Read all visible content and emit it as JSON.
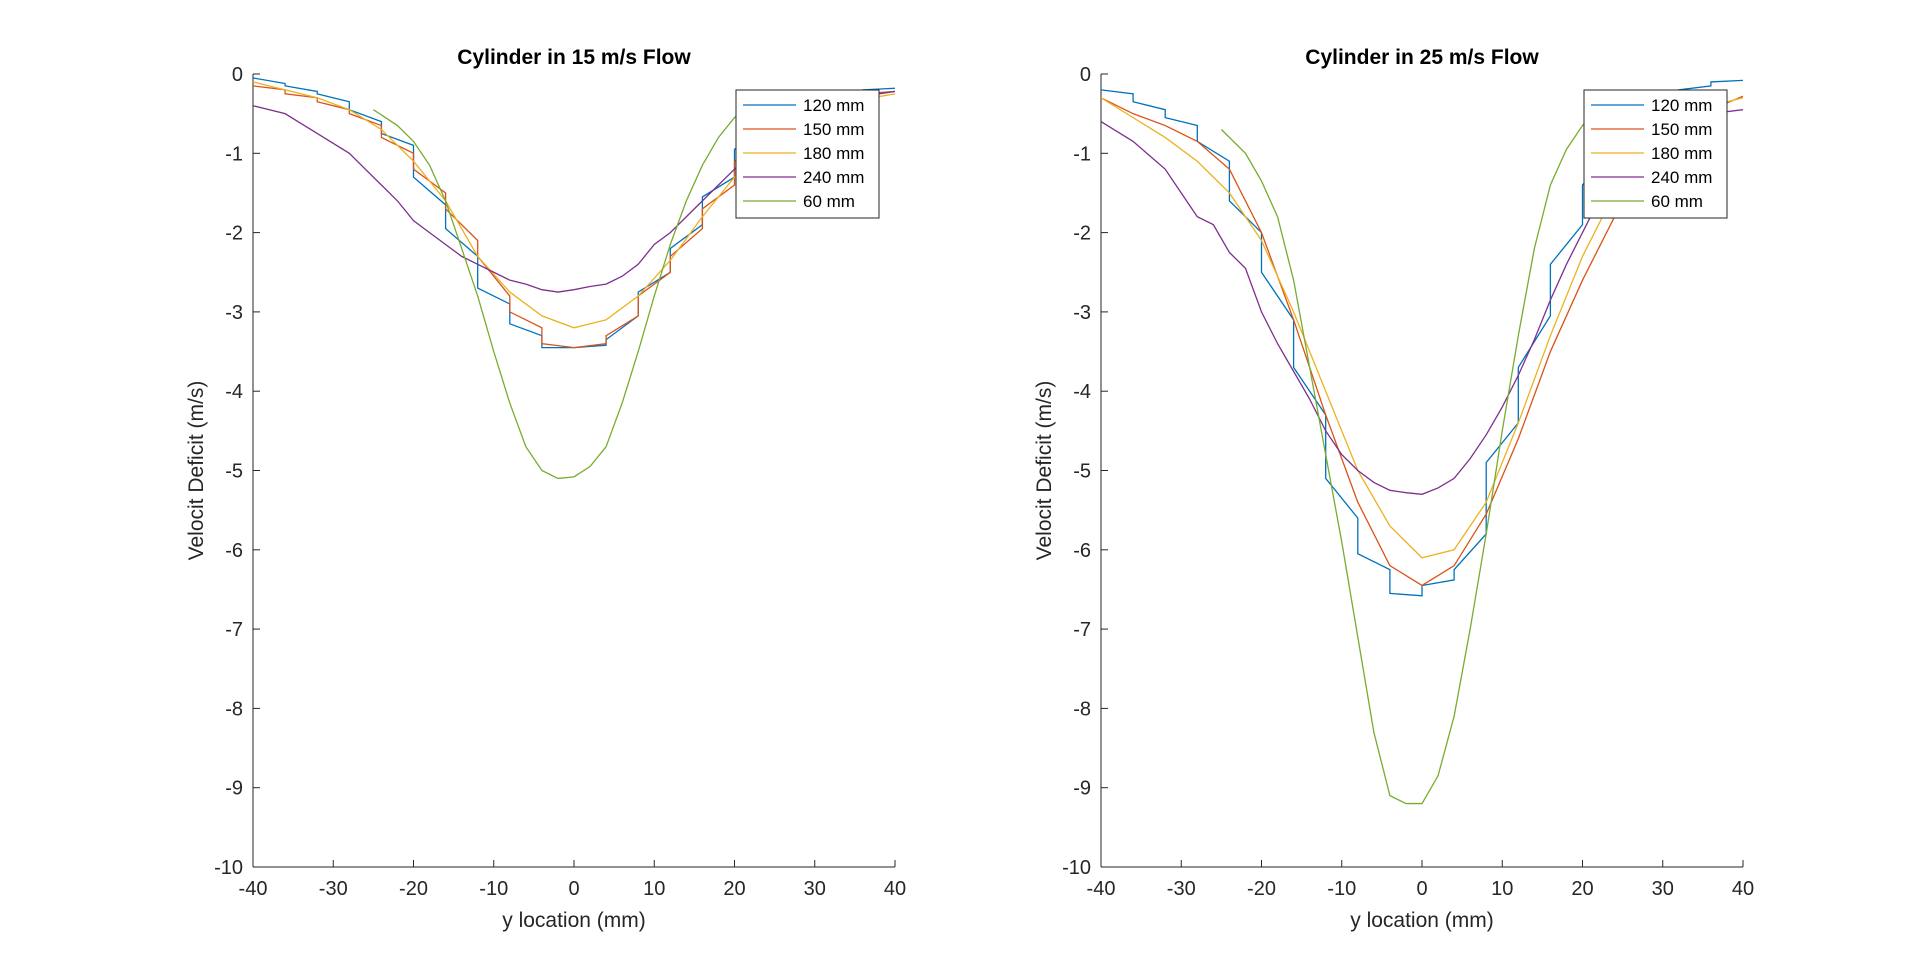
{
  "chart_data": [
    {
      "type": "line",
      "title": "Cylinder in 15 m/s Flow",
      "xlabel": "y location (mm)",
      "ylabel": "Velocit Deficit (m/s)",
      "xlim": [
        -40,
        40
      ],
      "ylim": [
        -10,
        0
      ],
      "xticks": [
        "-40",
        "-30",
        "-20",
        "-10",
        "0",
        "10",
        "20",
        "30",
        "40"
      ],
      "yticks": [
        "0",
        "-1",
        "-2",
        "-3",
        "-4",
        "-5",
        "-6",
        "-7",
        "-8",
        "-9",
        "-10"
      ],
      "grid": false,
      "legend_position": "top-right",
      "series": [
        {
          "name": "120 mm",
          "color": "#0072BD",
          "x": [
            -40,
            -36,
            -36,
            -32,
            -32,
            -28,
            -28,
            -24,
            -24,
            -20,
            -20,
            -16,
            -16,
            -12,
            -12,
            -8,
            -8,
            -4,
            -4,
            0,
            0,
            4,
            4,
            8,
            8,
            12,
            12,
            16,
            16,
            20,
            20,
            24,
            24,
            28,
            28,
            32,
            32,
            36,
            36,
            40
          ],
          "y": [
            -0.05,
            -0.12,
            -0.15,
            -0.22,
            -0.25,
            -0.35,
            -0.45,
            -0.6,
            -0.75,
            -0.9,
            -1.3,
            -1.65,
            -1.95,
            -2.3,
            -2.7,
            -2.9,
            -3.15,
            -3.3,
            -3.45,
            -3.45,
            -3.45,
            -3.42,
            -3.35,
            -3.05,
            -2.75,
            -2.5,
            -2.2,
            -1.9,
            -1.55,
            -1.3,
            -0.95,
            -0.7,
            -0.55,
            -0.45,
            -0.38,
            -0.32,
            -0.28,
            -0.24,
            -0.2,
            -0.18
          ]
        },
        {
          "name": "150 mm",
          "color": "#D95319",
          "x": [
            -40,
            -36,
            -36,
            -32,
            -32,
            -28,
            -28,
            -24,
            -24,
            -20,
            -20,
            -16,
            -16,
            -12,
            -12,
            -8,
            -8,
            -4,
            -4,
            0,
            0,
            4,
            4,
            8,
            8,
            12,
            12,
            16,
            16,
            20,
            20,
            24,
            24,
            28,
            28,
            32,
            32,
            36,
            36,
            40
          ],
          "y": [
            -0.15,
            -0.2,
            -0.25,
            -0.3,
            -0.35,
            -0.45,
            -0.5,
            -0.65,
            -0.8,
            -1.0,
            -1.2,
            -1.5,
            -1.7,
            -2.1,
            -2.3,
            -2.8,
            -3.0,
            -3.2,
            -3.4,
            -3.45,
            -3.45,
            -3.4,
            -3.3,
            -3.05,
            -2.8,
            -2.5,
            -2.3,
            -1.95,
            -1.7,
            -1.4,
            -1.1,
            -0.85,
            -0.7,
            -0.55,
            -0.45,
            -0.38,
            -0.32,
            -0.28,
            -0.25,
            -0.22
          ]
        },
        {
          "name": "180 mm",
          "color": "#EDB120",
          "x": [
            -40,
            -36,
            -32,
            -28,
            -24,
            -20,
            -16,
            -12,
            -8,
            -4,
            0,
            4,
            8,
            12,
            16,
            20,
            24,
            28,
            32,
            36,
            40
          ],
          "y": [
            -0.1,
            -0.2,
            -0.3,
            -0.45,
            -0.7,
            -1.1,
            -1.6,
            -2.3,
            -2.75,
            -3.05,
            -3.2,
            -3.1,
            -2.8,
            -2.35,
            -1.8,
            -1.3,
            -0.9,
            -0.6,
            -0.42,
            -0.32,
            -0.25
          ]
        },
        {
          "name": "240 mm",
          "color": "#7E2F8E",
          "x": [
            -40,
            -36,
            -32,
            -28,
            -26,
            -24,
            -22,
            -20,
            -18,
            -16,
            -14,
            -12,
            -10,
            -8,
            -6,
            -4,
            -2,
            0,
            2,
            4,
            6,
            8,
            10,
            12,
            14,
            16,
            18,
            20,
            22,
            24,
            26,
            28,
            32,
            36,
            40
          ],
          "y": [
            -0.4,
            -0.5,
            -0.75,
            -1.0,
            -1.2,
            -1.4,
            -1.6,
            -1.85,
            -2.0,
            -2.15,
            -2.3,
            -2.4,
            -2.5,
            -2.6,
            -2.65,
            -2.72,
            -2.75,
            -2.72,
            -2.68,
            -2.65,
            -2.55,
            -2.4,
            -2.15,
            -2.0,
            -1.8,
            -1.6,
            -1.4,
            -1.2,
            -1.0,
            -0.85,
            -0.7,
            -0.55,
            -0.38,
            -0.28,
            -0.22
          ]
        },
        {
          "name": "60 mm",
          "color": "#77AC30",
          "x": [
            -25,
            -22,
            -20,
            -18,
            -16,
            -14,
            -12,
            -10,
            -8,
            -6,
            -4,
            -2,
            0,
            2,
            4,
            6,
            8,
            10,
            12,
            14,
            16,
            18,
            20,
            22,
            24,
            26
          ],
          "y": [
            -0.45,
            -0.65,
            -0.85,
            -1.15,
            -1.6,
            -2.2,
            -2.8,
            -3.5,
            -4.15,
            -4.7,
            -5.0,
            -5.1,
            -5.08,
            -4.95,
            -4.7,
            -4.15,
            -3.5,
            -2.8,
            -2.15,
            -1.6,
            -1.15,
            -0.8,
            -0.55,
            -0.4,
            -0.3,
            -0.25
          ]
        }
      ]
    },
    {
      "type": "line",
      "title": "Cylinder in 25 m/s Flow",
      "xlabel": "y location (mm)",
      "ylabel": "Velocit Deficit (m/s)",
      "xlim": [
        -40,
        40
      ],
      "ylim": [
        -10,
        0
      ],
      "xticks": [
        "-40",
        "-30",
        "-20",
        "-10",
        "0",
        "10",
        "20",
        "30",
        "40"
      ],
      "yticks": [
        "0",
        "-1",
        "-2",
        "-3",
        "-4",
        "-5",
        "-6",
        "-7",
        "-8",
        "-9",
        "-10"
      ],
      "grid": false,
      "legend_position": "top-right",
      "series": [
        {
          "name": "120 mm",
          "color": "#0072BD",
          "x": [
            -40,
            -36,
            -36,
            -32,
            -32,
            -28,
            -28,
            -24,
            -24,
            -20,
            -20,
            -16,
            -16,
            -12,
            -12,
            -8,
            -8,
            -4,
            -4,
            0,
            0,
            4,
            4,
            8,
            8,
            12,
            12,
            16,
            16,
            20,
            20,
            24,
            24,
            28,
            28,
            32,
            32,
            36,
            36,
            40
          ],
          "y": [
            -0.2,
            -0.25,
            -0.35,
            -0.45,
            -0.55,
            -0.65,
            -0.85,
            -1.1,
            -1.6,
            -2.0,
            -2.5,
            -3.1,
            -3.7,
            -4.3,
            -5.1,
            -5.6,
            -6.05,
            -6.25,
            -6.55,
            -6.58,
            -6.45,
            -6.38,
            -6.25,
            -5.8,
            -4.9,
            -4.4,
            -3.7,
            -3.05,
            -2.4,
            -1.9,
            -1.4,
            -0.95,
            -0.75,
            -0.55,
            -0.4,
            -0.3,
            -0.2,
            -0.15,
            -0.1,
            -0.08
          ]
        },
        {
          "name": "150 mm",
          "color": "#D95319",
          "x": [
            -40,
            -36,
            -32,
            -28,
            -24,
            -20,
            -16,
            -12,
            -8,
            -4,
            0,
            4,
            8,
            12,
            16,
            20,
            22,
            24,
            28,
            32,
            36,
            40
          ],
          "y": [
            -0.3,
            -0.5,
            -0.65,
            -0.85,
            -1.2,
            -2.0,
            -3.1,
            -4.3,
            -5.4,
            -6.2,
            -6.45,
            -6.2,
            -5.55,
            -4.6,
            -3.5,
            -2.6,
            -2.2,
            -1.8,
            -1.2,
            -0.7,
            -0.45,
            -0.28
          ]
        },
        {
          "name": "180 mm",
          "color": "#EDB120",
          "x": [
            -40,
            -36,
            -32,
            -28,
            -24,
            -20,
            -16,
            -12,
            -8,
            -4,
            0,
            4,
            8,
            12,
            16,
            20,
            24,
            28,
            32,
            36,
            40
          ],
          "y": [
            -0.3,
            -0.55,
            -0.8,
            -1.1,
            -1.5,
            -2.1,
            -3.0,
            -4.0,
            -5.0,
            -5.7,
            -6.1,
            -6.0,
            -5.4,
            -4.4,
            -3.3,
            -2.3,
            -1.5,
            -0.95,
            -0.6,
            -0.4,
            -0.3
          ]
        },
        {
          "name": "240 mm",
          "color": "#7E2F8E",
          "x": [
            -40,
            -36,
            -32,
            -30,
            -28,
            -26,
            -24,
            -22,
            -20,
            -18,
            -16,
            -14,
            -12,
            -10,
            -8,
            -6,
            -4,
            -2,
            0,
            2,
            4,
            6,
            8,
            10,
            12,
            14,
            16,
            18,
            20,
            22,
            24,
            26,
            28,
            32,
            36,
            40
          ],
          "y": [
            -0.6,
            -0.85,
            -1.2,
            -1.5,
            -1.8,
            -1.9,
            -2.25,
            -2.45,
            -3.0,
            -3.4,
            -3.75,
            -4.1,
            -4.5,
            -4.8,
            -5.0,
            -5.15,
            -5.25,
            -5.28,
            -5.3,
            -5.22,
            -5.1,
            -4.85,
            -4.55,
            -4.2,
            -3.8,
            -3.35,
            -2.85,
            -2.4,
            -2.0,
            -1.6,
            -1.3,
            -1.05,
            -0.85,
            -0.6,
            -0.5,
            -0.45
          ]
        },
        {
          "name": "60 mm",
          "color": "#77AC30",
          "x": [
            -25,
            -22,
            -20,
            -18,
            -16,
            -14,
            -12,
            -10,
            -8,
            -6,
            -4,
            -2,
            0,
            2,
            4,
            6,
            8,
            10,
            12,
            14,
            16,
            18,
            20,
            22,
            24,
            26
          ],
          "y": [
            -0.7,
            -1.0,
            -1.35,
            -1.8,
            -2.6,
            -3.7,
            -4.8,
            -5.9,
            -7.1,
            -8.3,
            -9.1,
            -9.2,
            -9.2,
            -8.85,
            -8.1,
            -7.0,
            -5.8,
            -4.5,
            -3.3,
            -2.2,
            -1.4,
            -0.95,
            -0.65,
            -0.45,
            -0.32,
            -0.25
          ]
        }
      ]
    }
  ]
}
